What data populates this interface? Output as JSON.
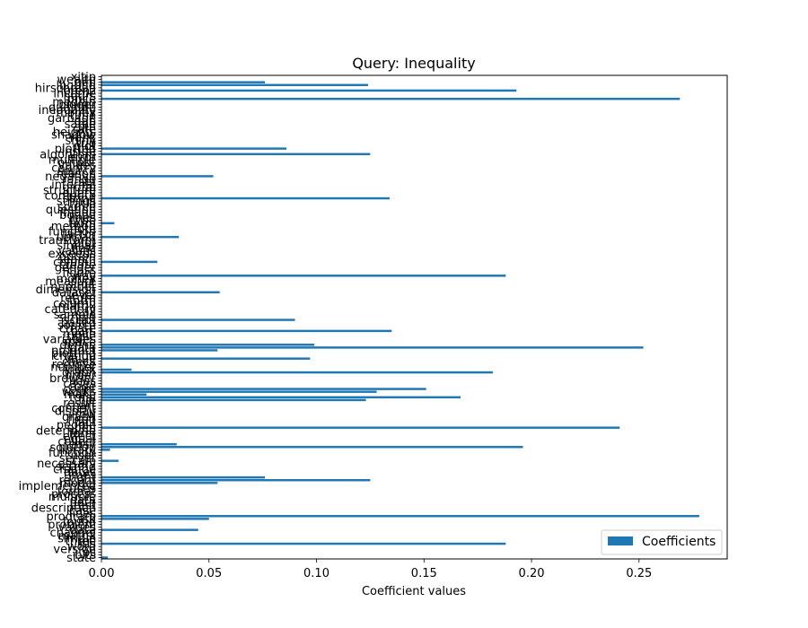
{
  "chart_data": {
    "type": "bar",
    "orientation": "horizontal",
    "title": "Query: Inequality",
    "xlabel": "Coefficient values",
    "ylabel": "",
    "xlim": [
      0,
      0.291
    ],
    "xticks": [
      0.0,
      0.05,
      0.1,
      0.15,
      0.2,
      0.25
    ],
    "xtick_labels": [
      "0.00",
      "0.05",
      "0.10",
      "0.15",
      "0.20",
      "0.25"
    ],
    "grid": false,
    "legend": {
      "position": "bottom-right",
      "label": "Coefficients"
    },
    "series_color": "#1f77b4",
    "categories": [
      "state",
      "bits",
      "ps",
      "version",
      "word",
      "ids",
      "three",
      "simple",
      "matrix",
      "channel",
      "data",
      "values",
      "problem",
      "found",
      "ask",
      "program",
      "lines",
      "case",
      "description",
      "test",
      "path",
      "data",
      "multiple",
      "process",
      "format",
      "uses",
      "implemented",
      "model",
      "recent",
      "right",
      "times",
      "dates",
      "change",
      "setting",
      "necessary",
      "scale",
      "server",
      "user",
      "function",
      "library",
      "solution",
      "easy",
      "collect",
      "equal",
      "effect",
      "form",
      "determine",
      "open",
      "people",
      "fact",
      "fixed",
      "graph",
      "row",
      "display",
      "content",
      "chart",
      "result",
      "file",
      "total",
      "make",
      "works",
      "count",
      "code",
      "cases",
      "lines",
      "browser",
      "order",
      "graph",
      "index",
      "number",
      "remove",
      "check",
      "value",
      "change",
      "plotting",
      "product",
      "data",
      "define",
      "space",
      "variables",
      "table",
      "mean",
      "bars",
      "create",
      "source",
      "based",
      "script",
      "simple",
      "sample",
      "call",
      "category",
      "matrix",
      "column",
      "form",
      "return",
      "level",
      "dataset",
      "dimension",
      "number",
      "limit",
      "measure",
      "money",
      "way",
      "figure",
      "class",
      "gender",
      "create",
      "column",
      "search",
      "option",
      "exceeds",
      "values",
      "field",
      "similar",
      "plot",
      "transform",
      "upload",
      "factor",
      "function",
      "note",
      "method",
      "term",
      "type",
      "lines",
      "bound",
      "image",
      "question",
      "source",
      "ratio",
      "strings",
      "string",
      "compute",
      "query",
      "structure",
      "group",
      "internal",
      "set",
      "range",
      "negative",
      "reason",
      "source",
      "country",
      "values",
      "output",
      "multiple",
      "error",
      "algorithm",
      "inside",
      "plotted",
      "plot",
      "trip",
      "shiny",
      "rank",
      "shadow",
      "heights",
      "rate",
      "bin",
      "same",
      "gap",
      "garbage",
      "time",
      "money",
      "inequality",
      "quantile",
      "bigger",
      "median",
      "price",
      "hours",
      "income",
      "lorenz",
      "hirschman",
      "lbound",
      "gini",
      "wealth",
      "xitip"
    ],
    "values": [
      0.003,
      0.0,
      0.0,
      0.0,
      0.0,
      0.188,
      0.0,
      0.0,
      0.0,
      0.0,
      0.045,
      0.0,
      0.0,
      0.0,
      0.05,
      0.278,
      0.0,
      0.0,
      0.0,
      0.0,
      0.0,
      0.0,
      0.0,
      0.0,
      0.0,
      0.0,
      0.0,
      0.054,
      0.125,
      0.076,
      0.0,
      0.0,
      0.0,
      0.0,
      0.0,
      0.008,
      0.0,
      0.0,
      0.0,
      0.004,
      0.196,
      0.035,
      0.0,
      0.0,
      0.0,
      0.0,
      0.0,
      0.241,
      0.0,
      0.0,
      0.0,
      0.0,
      0.0,
      0.0,
      0.0,
      0.0,
      0.0,
      0.123,
      0.167,
      0.021,
      0.128,
      0.151,
      0.0,
      0.0,
      0.0,
      0.0,
      0.0,
      0.182,
      0.014,
      0.0,
      0.0,
      0.0,
      0.097,
      0.0,
      0.0,
      0.054,
      0.252,
      0.099,
      0.0,
      0.0,
      0.0,
      0.0,
      0.135,
      0.0,
      0.0,
      0.0,
      0.09,
      0.0,
      0.0,
      0.0,
      0.0,
      0.0,
      0.0,
      0.0,
      0.0,
      0.0,
      0.055,
      0.0,
      0.0,
      0.0,
      0.0,
      0.0,
      0.188,
      0.0,
      0.0,
      0.0,
      0.0,
      0.026,
      0.0,
      0.0,
      0.0,
      0.0,
      0.0,
      0.0,
      0.0,
      0.0,
      0.036,
      0.0,
      0.0,
      0.0,
      0.0,
      0.006,
      0.0,
      0.0,
      0.0,
      0.0,
      0.0,
      0.0,
      0.0,
      0.0,
      0.134,
      0.0,
      0.0,
      0.0,
      0.0,
      0.0,
      0.0,
      0.0,
      0.052,
      0.0,
      0.0,
      0.0,
      0.0,
      0.0,
      0.0,
      0.0,
      0.125,
      0.0,
      0.086,
      0.0,
      0.0,
      0.0,
      0.0,
      0.0,
      0.0,
      0.0,
      0.0,
      0.0,
      0.0,
      0.0,
      0.0,
      0.0,
      0.0,
      0.0,
      0.0,
      0.0,
      0.269,
      0.0,
      0.0,
      0.193,
      0.0,
      0.124,
      0.076,
      0.0,
      0.0
    ]
  }
}
